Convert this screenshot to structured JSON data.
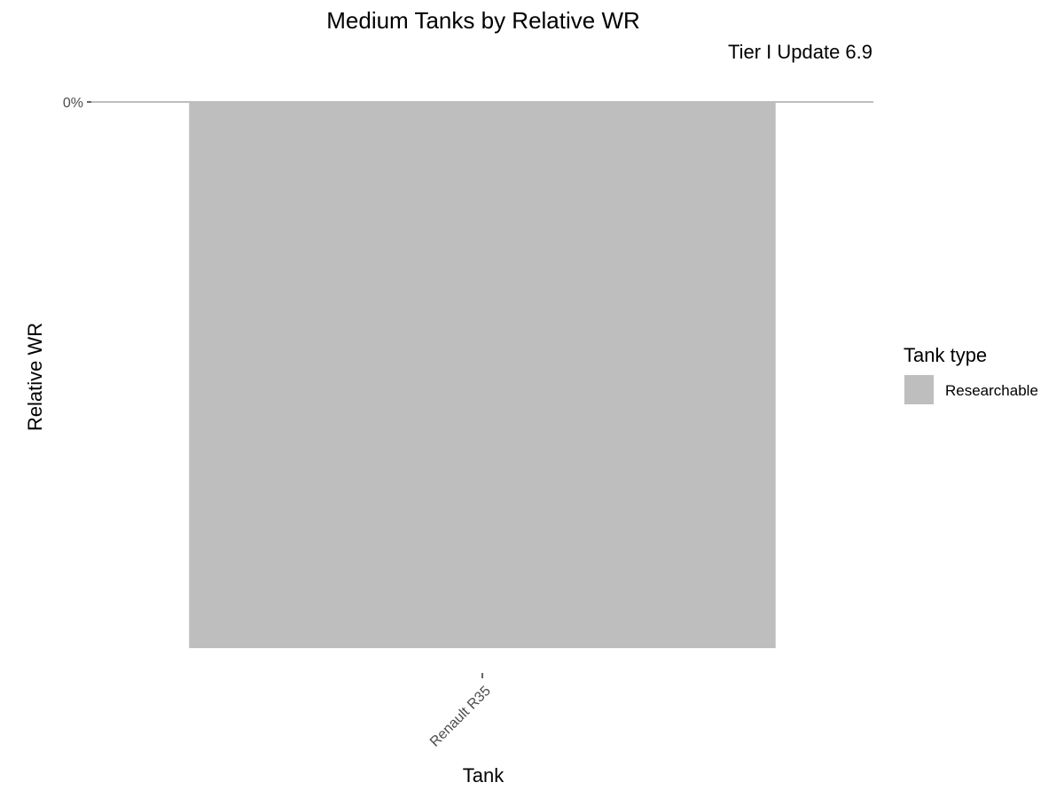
{
  "chart_data": {
    "type": "bar",
    "title": "Medium Tanks by Relative WR",
    "subtitle": "Tier I Update 6.9",
    "xlabel": "Tank",
    "ylabel": "Relative WR",
    "categories": [
      "Renault R35"
    ],
    "series": [
      {
        "values": [
          -0.5
        ],
        "fill": "#bebebe",
        "group": "Researchable"
      }
    ],
    "ylim": [
      -0.5,
      0
    ],
    "y_ticks": [
      {
        "value": 0,
        "label": "0%"
      }
    ],
    "legend": {
      "title": "Tank type",
      "position": "right",
      "items": [
        {
          "label": "Researchable",
          "color": "#bebebe"
        }
      ]
    },
    "grid": false
  }
}
